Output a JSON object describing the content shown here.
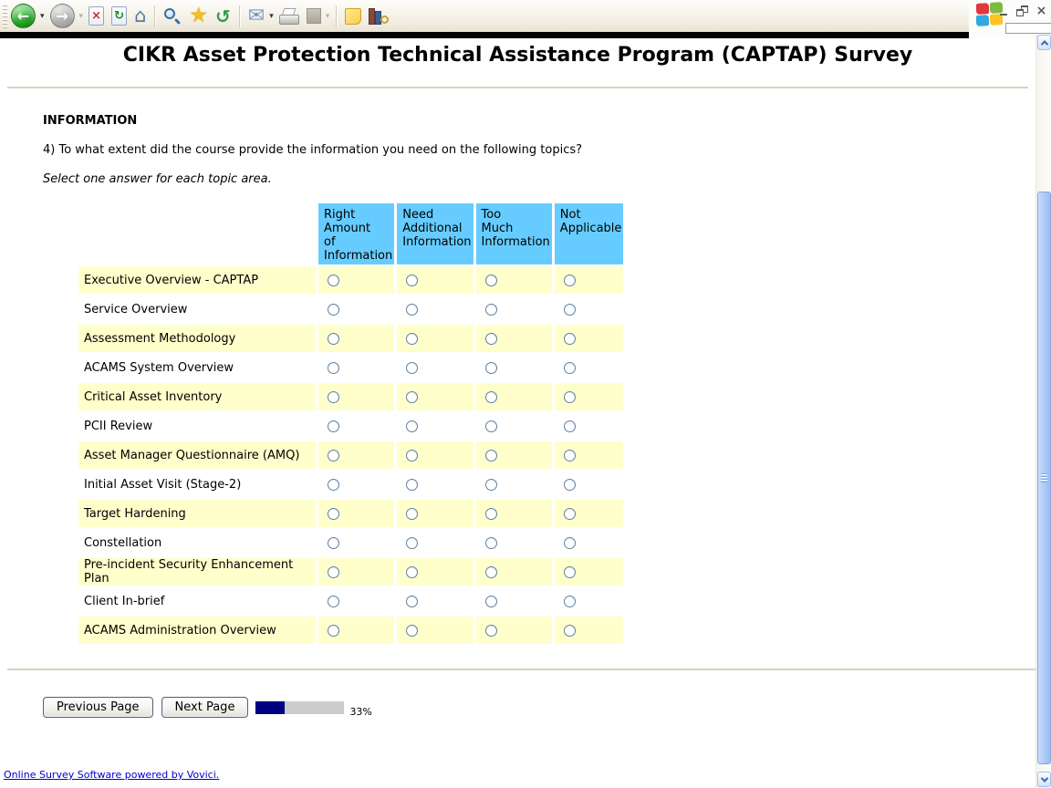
{
  "browser": {
    "glyphs": {
      "back_arrow": "←",
      "forward_arrow": "→",
      "dropdown": "▾",
      "stop": "×",
      "refresh": "↻",
      "home": "⌂",
      "favorites_star": "★",
      "history": "↺",
      "mail": "✉",
      "close": "×"
    },
    "toolbar_icon_names": [
      "back",
      "forward",
      "stop",
      "refresh",
      "home",
      "search",
      "favorites",
      "history",
      "mail",
      "print",
      "edit-disabled",
      "notes",
      "research"
    ],
    "window_controls": [
      "minimize",
      "restore",
      "close"
    ]
  },
  "survey": {
    "title": "CIKR Asset Protection Technical Assistance Program (CAPTAP) Survey",
    "section_heading": "INFORMATION",
    "question": "4) To what extent did the course provide the information you need on the following topics?",
    "instruction": "Select one answer for each topic area.",
    "table": {
      "columns": [
        "Right\nAmount\nof\nInformation",
        "Need\nAdditional\nInformation",
        "Too\nMuch\nInformation",
        "Not\nApplicable"
      ],
      "rows": [
        "Executive Overview - CAPTAP",
        "Service Overview",
        "Assessment Methodology",
        "ACAMS System Overview",
        "Critical Asset Inventory",
        "PCII Review",
        "Asset Manager Questionnaire (AMQ)",
        "Initial Asset Visit (Stage-2)",
        "Target Hardening",
        "Constellation",
        "Pre-incident Security Enhancement Plan",
        "Client In-brief",
        "ACAMS Administration Overview"
      ]
    },
    "navigation": {
      "previous_label": "Previous Page",
      "next_label": "Next Page",
      "progress_value": 33,
      "progress_label": "33%"
    },
    "footer_link": "Online Survey Software powered by Vovici."
  },
  "colors": {
    "header_bg": "#66ccff",
    "alt_row_bg": "#ffffcc",
    "progress_fill": "#000080",
    "progress_track": "#cccccc",
    "link": "#0000cc",
    "rule": "#d6d2c2"
  }
}
